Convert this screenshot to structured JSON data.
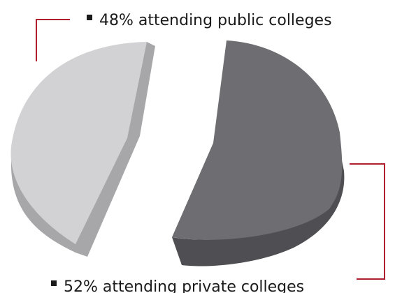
{
  "chart_data": {
    "type": "pie",
    "title": "",
    "style": "3d exploded",
    "series": [
      {
        "values": [
          48,
          52
        ],
        "labels": [
          "48% attending public colleges",
          "52% attending private colleges"
        ]
      }
    ],
    "slices": [
      {
        "label": "48% attending public colleges",
        "value": 48,
        "color": "#d2d2d4",
        "side_color": "#a7a7aa"
      },
      {
        "label": "52% attending private colleges",
        "value": 52,
        "color": "#6e6e72",
        "side_color": "#4f4f53"
      }
    ],
    "leader_color": "#b01f2e",
    "legend_marker_color": "#1a1a1a"
  }
}
